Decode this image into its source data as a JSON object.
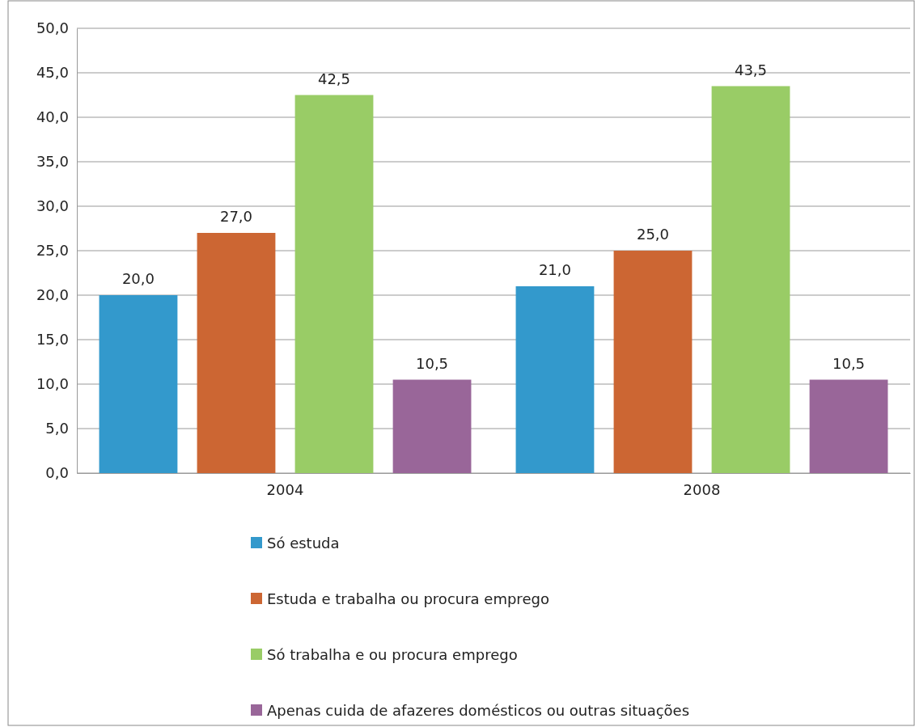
{
  "chart_data": {
    "type": "bar",
    "categories": [
      "2004",
      "2008"
    ],
    "series": [
      {
        "name": "Só estuda",
        "color": "#3399cc",
        "values": [
          20.0,
          21.0
        ],
        "value_labels": [
          "20,0",
          "21,0"
        ]
      },
      {
        "name": "Estuda e trabalha ou procura emprego",
        "color": "#cc6633",
        "values": [
          27.0,
          25.0
        ],
        "value_labels": [
          "27,0",
          "25,0"
        ]
      },
      {
        "name": "Só trabalha e ou procura emprego",
        "color": "#99cc66",
        "values": [
          42.5,
          43.5
        ],
        "value_labels": [
          "42,5",
          "43,5"
        ]
      },
      {
        "name": "Apenas cuida de afazeres  domésticos ou outras situações",
        "color": "#996699",
        "values": [
          10.5,
          10.5
        ],
        "value_labels": [
          "10,5",
          "10,5"
        ]
      }
    ],
    "ylim": [
      0,
      50
    ],
    "yticks": [
      {
        "value": 0,
        "label": "0,0"
      },
      {
        "value": 5,
        "label": "5,0"
      },
      {
        "value": 10,
        "label": "10,0"
      },
      {
        "value": 15,
        "label": "15,0"
      },
      {
        "value": 20,
        "label": "20,0"
      },
      {
        "value": 25,
        "label": "25,0"
      },
      {
        "value": 30,
        "label": "30,0"
      },
      {
        "value": 35,
        "label": "35,0"
      },
      {
        "value": 40,
        "label": "40,0"
      },
      {
        "value": 45,
        "label": "45,0"
      },
      {
        "value": 50,
        "label": "50,0"
      }
    ],
    "grid": "y",
    "legend": "bottom"
  }
}
